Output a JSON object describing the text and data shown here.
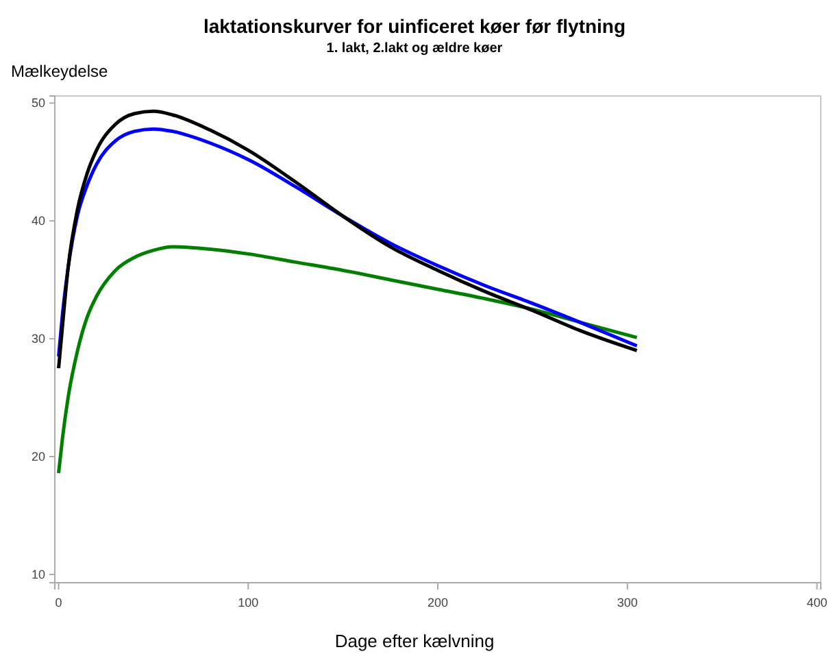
{
  "chart_data": {
    "type": "line",
    "title": "laktationskurver for uinficeret køer før flytning",
    "subtitle": "1. lakt, 2.lakt og ældre køer",
    "xlabel": "Dage efter kælvning",
    "ylabel": "Mælkeydelse",
    "xlim": [
      -2,
      402
    ],
    "xticks": [
      0,
      100,
      200,
      300,
      400
    ],
    "ylim": [
      9.3,
      50.6
    ],
    "yticks": [
      10,
      20,
      30,
      40,
      50
    ],
    "marker": "none",
    "line_style": "solid",
    "x": [
      0,
      2,
      5,
      10,
      15,
      20,
      30,
      40,
      50,
      60,
      80,
      100,
      125,
      150,
      175,
      200,
      225,
      250,
      275,
      305
    ],
    "series": [
      {
        "color": "#007f00",
        "values": [
          18.6,
          21.5,
          25,
          29,
          31.8,
          33.6,
          35.8,
          36.9,
          37.5,
          37.8,
          37.6,
          37.2,
          36.5,
          35.8,
          35.0,
          34.2,
          33.4,
          32.5,
          31.4,
          30.1
        ]
      },
      {
        "color": "#0000ff",
        "values": [
          28.5,
          32,
          36,
          40.5,
          43,
          44.8,
          46.8,
          47.6,
          47.8,
          47.6,
          46.6,
          45.2,
          42.9,
          40.4,
          38.1,
          36.2,
          34.5,
          33.0,
          31.4,
          29.4
        ]
      },
      {
        "color": "#000000",
        "values": [
          27.5,
          31,
          36,
          41,
          44,
          46,
          48.2,
          49.1,
          49.3,
          49.0,
          47.7,
          46.0,
          43.3,
          40.4,
          37.8,
          35.8,
          34.0,
          32.4,
          30.7,
          29.0
        ]
      }
    ]
  }
}
